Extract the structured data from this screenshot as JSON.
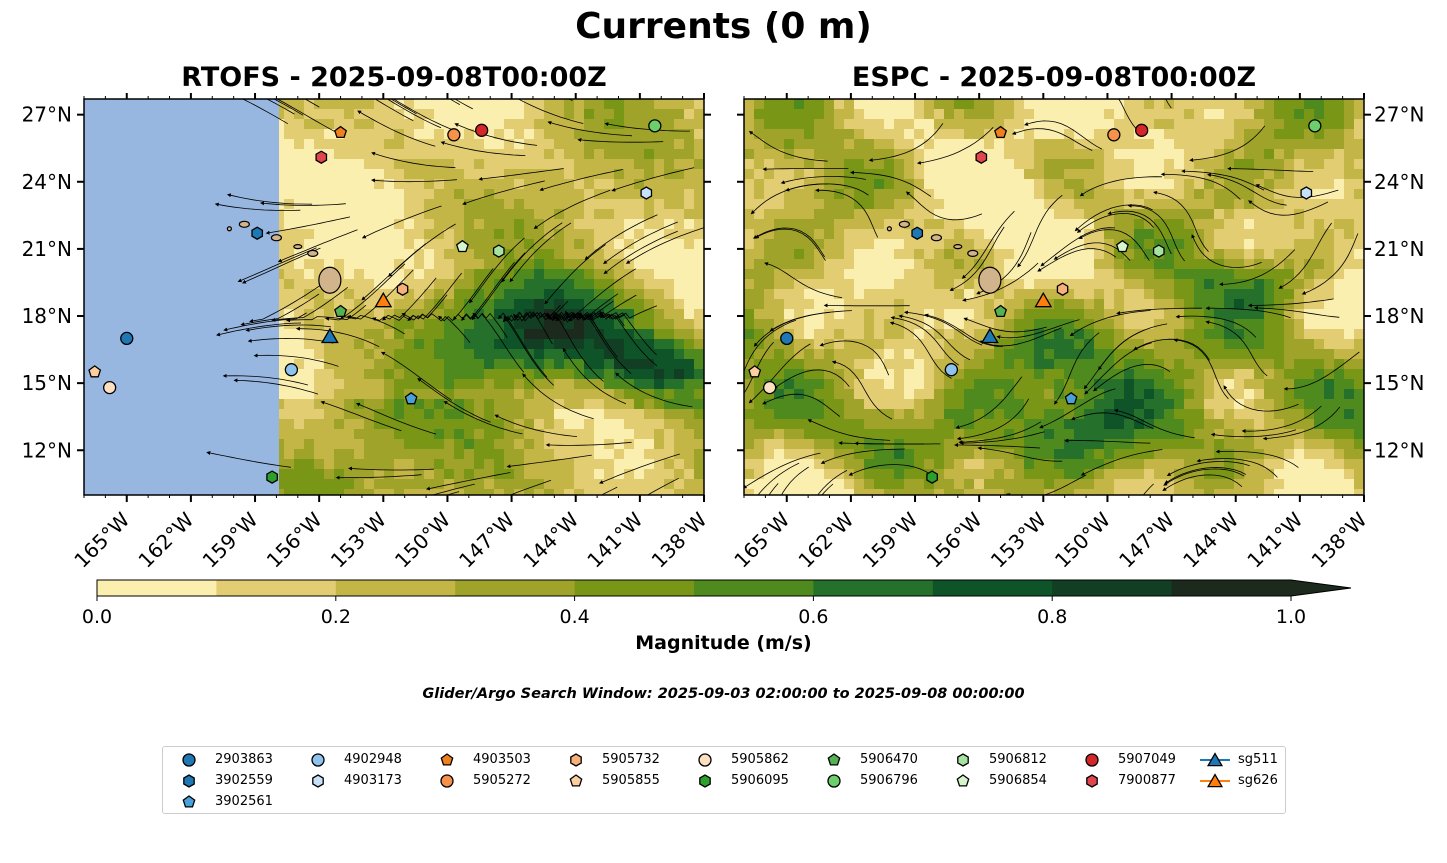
{
  "title": "Currents (0 m)",
  "panels": [
    {
      "id": "rtofs",
      "title": "RTOFS - 2025-09-08T00:00Z",
      "land_fill_west": true
    },
    {
      "id": "espc",
      "title": "ESPC - 2025-09-08T00:00Z",
      "land_fill_west": false
    }
  ],
  "map_extent": {
    "lon_min": -167,
    "lon_max": -138,
    "lat_min": 10,
    "lat_max": 27.7
  },
  "lon_ticks": [
    {
      "value": -165,
      "label": "165°W"
    },
    {
      "value": -162,
      "label": "162°W"
    },
    {
      "value": -159,
      "label": "159°W"
    },
    {
      "value": -156,
      "label": "156°W"
    },
    {
      "value": -153,
      "label": "153°W"
    },
    {
      "value": -150,
      "label": "150°W"
    },
    {
      "value": -147,
      "label": "147°W"
    },
    {
      "value": -144,
      "label": "144°W"
    },
    {
      "value": -141,
      "label": "141°W"
    },
    {
      "value": -138,
      "label": "138°W"
    }
  ],
  "lat_ticks": [
    {
      "value": 27,
      "label": "27°N"
    },
    {
      "value": 24,
      "label": "24°N"
    },
    {
      "value": 21,
      "label": "21°N"
    },
    {
      "value": 18,
      "label": "18°N"
    },
    {
      "value": 15,
      "label": "15°N"
    },
    {
      "value": 12,
      "label": "12°N"
    }
  ],
  "colorbar": {
    "label": "Magnitude (m/s)",
    "min": 0.0,
    "max": 1.0,
    "extend": "max",
    "colors": [
      "#fbefb0",
      "#e2cd72",
      "#c4b547",
      "#9fa32a",
      "#7a9616",
      "#4f8a1e",
      "#25702a",
      "#0f5428",
      "#123f24",
      "#1b2a1c"
    ],
    "ticks": [
      {
        "value": 0.0,
        "label": "0.0"
      },
      {
        "value": 0.2,
        "label": "0.2"
      },
      {
        "value": 0.4,
        "label": "0.4"
      },
      {
        "value": 0.6,
        "label": "0.6"
      },
      {
        "value": 0.8,
        "label": "0.8"
      },
      {
        "value": 1.0,
        "label": "1.0"
      }
    ]
  },
  "search_window": "Glider/Argo Search Window: 2025-09-03 02:00:00 to 2025-09-08 00:00:00",
  "colors": {
    "ocean_blue": "#97b6e0",
    "land": "#d2b48c"
  },
  "platforms": [
    {
      "id": "2903863",
      "label": "2903863",
      "marker": "circle",
      "color": "#1f77b4",
      "lon": -165.0,
      "lat": 17.0
    },
    {
      "id": "3902559",
      "label": "3902559",
      "marker": "hexagon",
      "color": "#1f77b4",
      "lon": -158.9,
      "lat": 21.7
    },
    {
      "id": "3902561",
      "label": "3902561",
      "marker": "pentagon",
      "color": "#4aa0d8",
      "lon": -151.7,
      "lat": 14.3
    },
    {
      "id": "4902948",
      "label": "4902948",
      "marker": "circle",
      "color": "#8ec3ee",
      "lon": -157.3,
      "lat": 15.6
    },
    {
      "id": "4903173",
      "label": "4903173",
      "marker": "hexagon",
      "color": "#c7e2f8",
      "lon": -140.7,
      "lat": 23.5
    },
    {
      "id": "4903503",
      "label": "4903503",
      "marker": "pentagon",
      "color": "#f07f1f",
      "lon": -155.0,
      "lat": 26.2
    },
    {
      "id": "5905272",
      "label": "5905272",
      "marker": "circle",
      "color": "#f5934a",
      "lon": -149.7,
      "lat": 26.1
    },
    {
      "id": "5905732",
      "label": "5905732",
      "marker": "hexagon",
      "color": "#f6b07a",
      "lon": -152.1,
      "lat": 19.2
    },
    {
      "id": "5905855",
      "label": "5905855",
      "marker": "pentagon",
      "color": "#fbcfa0",
      "lon": -166.5,
      "lat": 15.5
    },
    {
      "id": "5905862",
      "label": "5905862",
      "marker": "circle",
      "color": "#fde0c0",
      "lon": -165.8,
      "lat": 14.8
    },
    {
      "id": "5906095",
      "label": "5906095",
      "marker": "hexagon",
      "color": "#2ca02c",
      "lon": -158.2,
      "lat": 10.8
    },
    {
      "id": "5906470",
      "label": "5906470",
      "marker": "pentagon",
      "color": "#54b254",
      "lon": -155.0,
      "lat": 18.2
    },
    {
      "id": "5906796",
      "label": "5906796",
      "marker": "circle",
      "color": "#6ccf6c",
      "lon": -140.3,
      "lat": 26.5
    },
    {
      "id": "5906812",
      "label": "5906812",
      "marker": "hexagon",
      "color": "#a6e3a0",
      "lon": -147.6,
      "lat": 20.9
    },
    {
      "id": "5906854",
      "label": "5906854",
      "marker": "pentagon",
      "color": "#d5f5cc",
      "lon": -149.3,
      "lat": 21.1
    },
    {
      "id": "5907049",
      "label": "5907049",
      "marker": "circle",
      "color": "#d62728",
      "lon": -148.4,
      "lat": 26.3
    },
    {
      "id": "7900877",
      "label": "7900877",
      "marker": "hexagon",
      "color": "#e0474c",
      "lon": -155.9,
      "lat": 25.1
    },
    {
      "id": "sg511",
      "label": "sg511",
      "marker": "triangle",
      "color": "#1f77b4",
      "lon": -155.5,
      "lat": 17.1
    },
    {
      "id": "sg626",
      "label": "sg626",
      "marker": "triangle",
      "color": "#ff7f0e",
      "lon": -153.0,
      "lat": 18.7
    }
  ],
  "legend_order": [
    "2903863",
    "3902559",
    "3902561",
    "4902948",
    "4903173",
    "4903503",
    "5905272",
    "5905732",
    "5905855",
    "5905862",
    "5906095",
    "5906470",
    "5906796",
    "5906812",
    "5906854",
    "5907049",
    "7900877",
    "sg511",
    "sg626"
  ]
}
